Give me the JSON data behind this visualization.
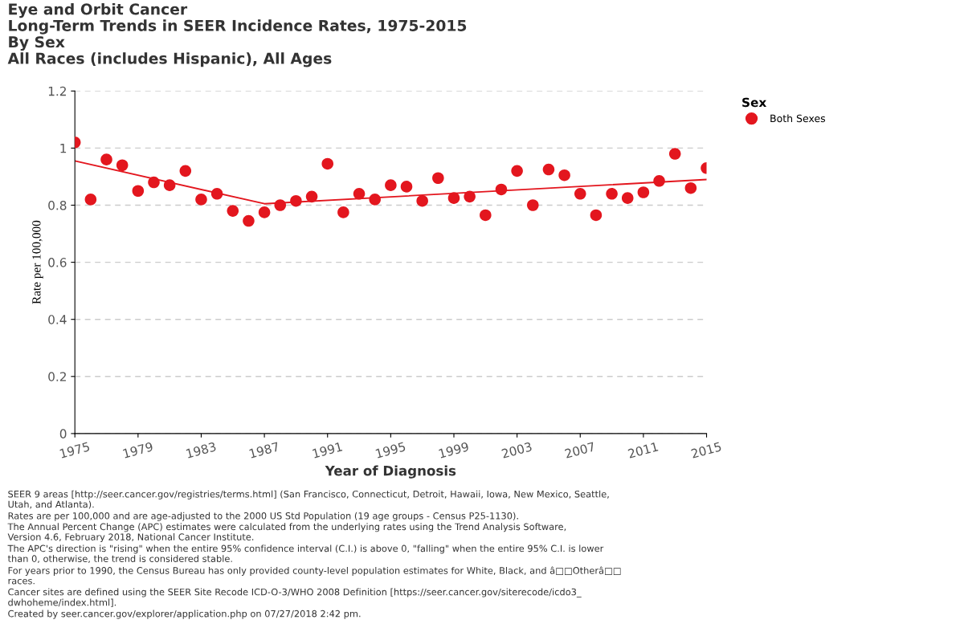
{
  "chart_data": {
    "type": "scatter",
    "title": "Eye and Orbit Cancer\nLong-Term Trends in SEER Incidence Rates, 1975-2015\nBy Sex\nAll Races (includes Hispanic), All Ages",
    "xlabel": "Year of Diagnosis",
    "ylabel": "Rate per 100,000",
    "legend_title": "Sex",
    "legend": "right",
    "grid": "y",
    "marker": "circle",
    "xlim": [
      1975,
      2015
    ],
    "xticks": [
      1975,
      1979,
      1983,
      1987,
      1991,
      1995,
      1999,
      2003,
      2007,
      2011,
      2015
    ],
    "ylim": [
      0,
      1.2
    ],
    "yticks": [
      0,
      0.2,
      0.4,
      0.6,
      0.8,
      1,
      1.2
    ],
    "series": [
      {
        "name": "Both Sexes",
        "color": "#e3161e",
        "x": [
          1975,
          1976,
          1977,
          1978,
          1979,
          1980,
          1981,
          1982,
          1983,
          1984,
          1985,
          1986,
          1987,
          1988,
          1989,
          1990,
          1991,
          1992,
          1993,
          1994,
          1995,
          1996,
          1997,
          1998,
          1999,
          2000,
          2001,
          2002,
          2003,
          2004,
          2005,
          2006,
          2007,
          2008,
          2009,
          2010,
          2011,
          2012,
          2013,
          2014,
          2015
        ],
        "values": [
          1.02,
          0.82,
          0.96,
          0.94,
          0.85,
          0.88,
          0.87,
          0.92,
          0.82,
          0.84,
          0.78,
          0.745,
          0.775,
          0.8,
          0.815,
          0.83,
          0.945,
          0.775,
          0.84,
          0.82,
          0.87,
          0.865,
          0.815,
          0.895,
          0.825,
          0.83,
          0.765,
          0.855,
          0.92,
          0.8,
          0.925,
          0.905,
          0.84,
          0.765,
          0.84,
          0.825,
          0.845,
          0.885,
          0.98,
          0.86,
          0.93
        ]
      },
      {
        "type": "line",
        "color": "#e3161e",
        "x": [
          1975,
          1987,
          2015
        ],
        "values": [
          0.955,
          0.805,
          0.89
        ],
        "marker": "none",
        "line_style": "solid"
      }
    ],
    "annotations": [
      "SEER 9 areas [http://seer.cancer.gov/registries/terms.html] (San Francisco, Connecticut, Detroit, Hawaii, Iowa, New Mexico, Seattle,\nUtah, and Atlanta).",
      "Rates are per 100,000 and are age-adjusted to the 2000 US Std Population (19 age groups - Census P25-1130).",
      "The Annual Percent Change (APC) estimates were calculated from the underlying rates using the Trend Analysis Software,\nVersion 4.6, February 2018, National Cancer Institute.",
      "The APC's direction is \"rising\" when the entire 95% confidence interval (C.I.) is above 0, \"falling\" when the entire 95% C.I. is lower\nthan 0, otherwise, the trend is considered stable.",
      "For years prior to 1990, the Census Bureau has only provided county-level population estimates for White, Black, and â□□Otherâ□□\nraces.",
      "Cancer sites are defined using the SEER Site Recode ICD-O-3/WHO 2008 Definition [https://seer.cancer.gov/siterecode/icdo3_\ndwhoheme/index.html].",
      "Created by seer.cancer.gov/explorer/application.php on 07/27/2018 2:42 pm."
    ]
  }
}
